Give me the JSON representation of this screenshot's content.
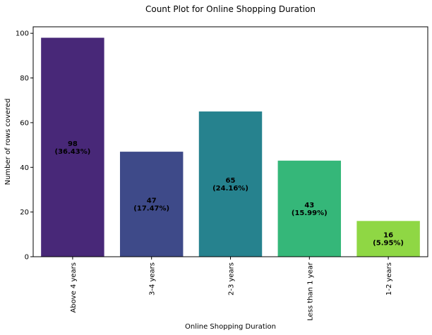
{
  "chart_data": {
    "type": "bar",
    "title": "Count Plot for Online Shopping Duration",
    "xlabel": "Online Shopping Duration",
    "ylabel": "Number of rows covered",
    "categories": [
      "Above 4 years",
      "3-4 years",
      "2-3 years",
      "Less than 1 year",
      "1-2 years"
    ],
    "values": [
      98,
      47,
      65,
      43,
      16
    ],
    "bar_labels": [
      [
        "98",
        "(36.43%)"
      ],
      [
        "47",
        "(17.47%)"
      ],
      [
        "65",
        "(24.16%)"
      ],
      [
        "43",
        "(15.99%)"
      ],
      [
        "16",
        "(5.95%)"
      ]
    ],
    "colors": [
      "#482878",
      "#3e4a89",
      "#26828e",
      "#35b779",
      "#8fd744"
    ],
    "ylim": [
      0,
      102.9
    ],
    "yticks": [
      0,
      20,
      40,
      60,
      80,
      100
    ],
    "grid": false,
    "legend": "none"
  }
}
